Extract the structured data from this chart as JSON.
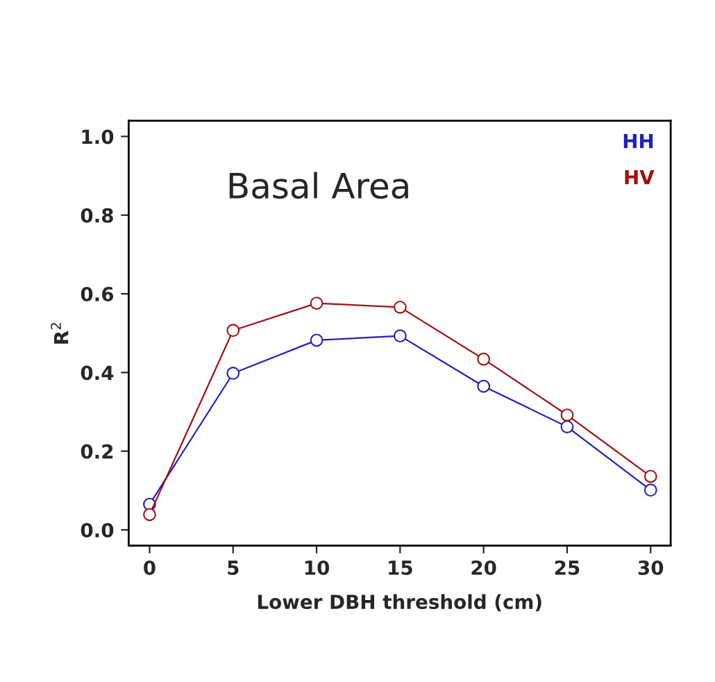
{
  "chart_data": {
    "type": "line",
    "title": "Basal Area",
    "xlabel": "Lower DBH threshold (cm)",
    "ylabel": "R$^{2}$",
    "x": [
      0,
      5,
      10,
      15,
      20,
      25,
      30
    ],
    "series": [
      {
        "name": "HH",
        "color": "#2020c0",
        "values": [
          0.065,
          0.398,
          0.482,
          0.493,
          0.365,
          0.262,
          0.101
        ]
      },
      {
        "name": "HV",
        "color": "#a01010",
        "values": [
          0.039,
          0.507,
          0.576,
          0.566,
          0.434,
          0.292,
          0.136
        ]
      }
    ],
    "xlim": [
      -1.25,
      31.2
    ],
    "xticks": [
      0,
      5,
      10,
      15,
      20,
      25,
      30
    ],
    "ylim": [
      -0.04,
      1.04
    ],
    "yticks": [
      {
        "value": 0,
        "label": "0.0"
      },
      0.2,
      0.4,
      0.6,
      0.8,
      {
        "value": 1,
        "label": "1.0"
      }
    ],
    "marker": "circle",
    "line_style": "solid",
    "grid": false,
    "legend": "top right"
  }
}
